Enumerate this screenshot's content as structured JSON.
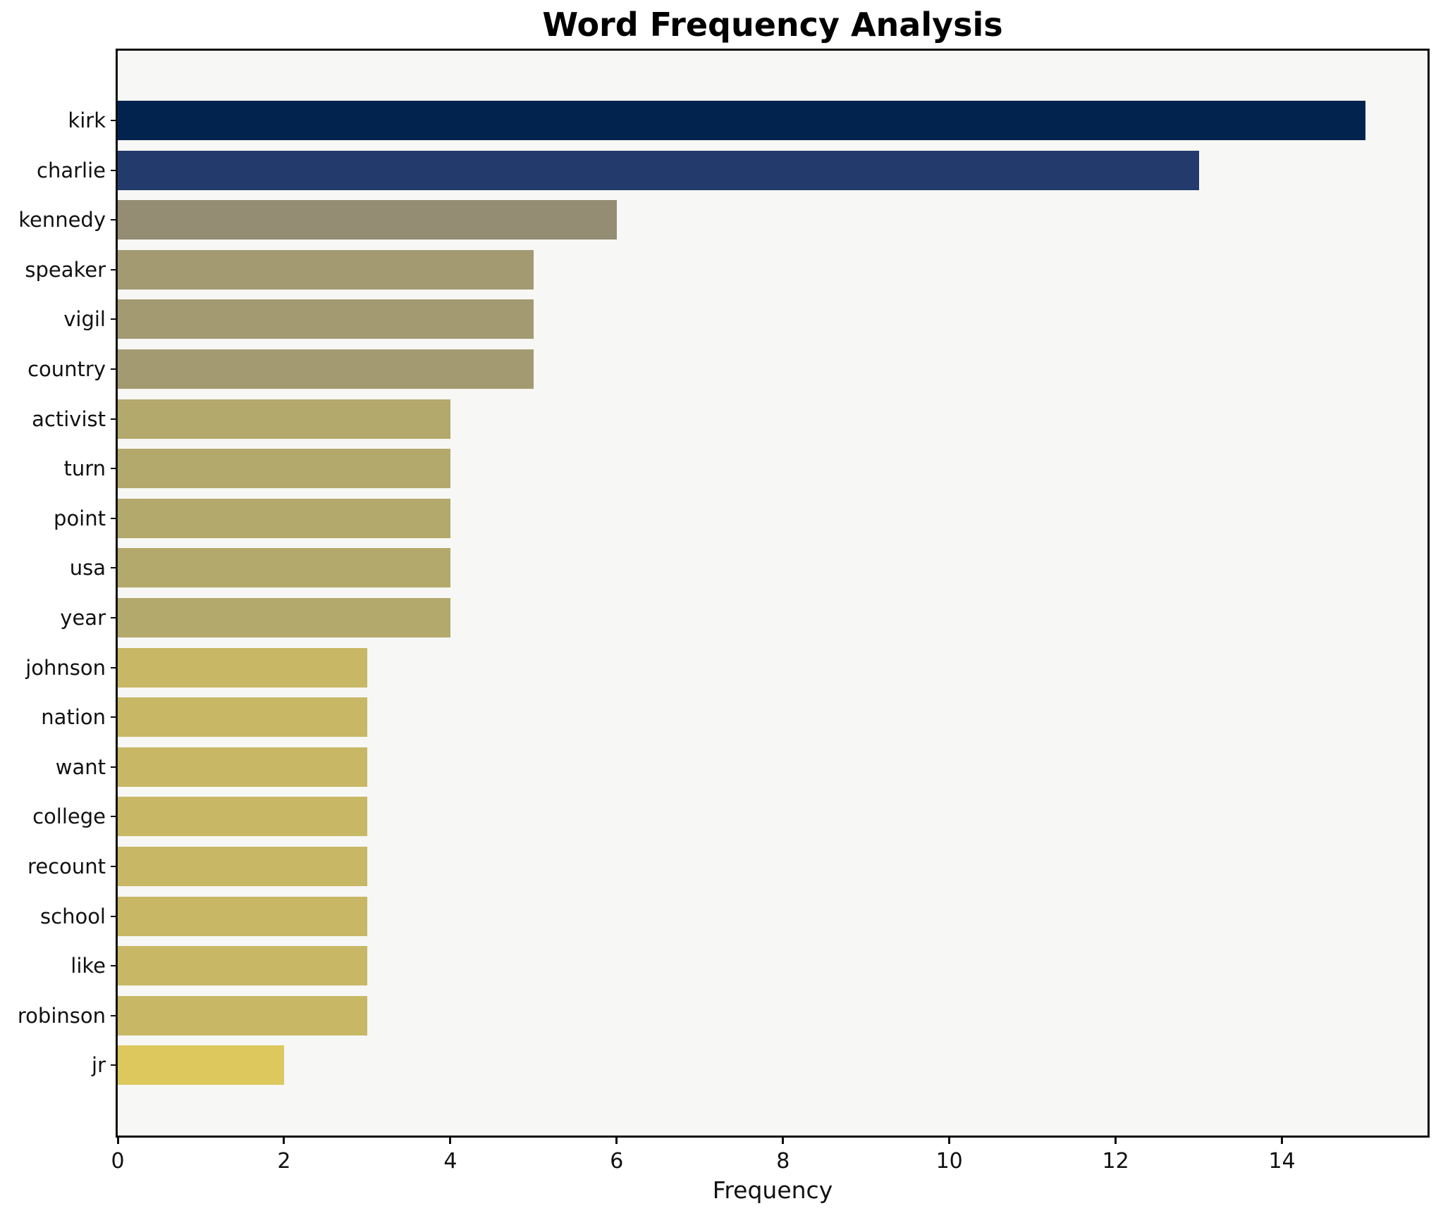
{
  "chart_data": {
    "type": "bar",
    "orientation": "horizontal",
    "title": "Word Frequency Analysis",
    "xlabel": "Frequency",
    "ylabel": "",
    "grid": false,
    "legend_position": "none",
    "xlim": [
      0,
      15.75
    ],
    "xticks": [
      0,
      2,
      4,
      6,
      8,
      10,
      12,
      14
    ],
    "categories": [
      "kirk",
      "charlie",
      "kennedy",
      "speaker",
      "vigil",
      "country",
      "activist",
      "turn",
      "point",
      "usa",
      "year",
      "johnson",
      "nation",
      "want",
      "college",
      "recount",
      "school",
      "like",
      "robinson",
      "jr"
    ],
    "values": [
      15,
      13,
      6,
      5,
      5,
      5,
      4,
      4,
      4,
      4,
      4,
      3,
      3,
      3,
      3,
      3,
      3,
      3,
      3,
      2
    ],
    "bar_colors": [
      "#02234e",
      "#223b6c",
      "#948d74",
      "#a39a72",
      "#a39a72",
      "#a39a72",
      "#b4a96c",
      "#b4a96c",
      "#b4a96c",
      "#b4a96c",
      "#b4a96c",
      "#c8b865",
      "#c8b865",
      "#c8b865",
      "#c8b865",
      "#c8b865",
      "#c8b865",
      "#c8b865",
      "#c8b865",
      "#dcc85c"
    ],
    "colors": {
      "figure_background": "#ffffff",
      "plot_background": "#f7f7f5",
      "spine": "#0d0d0d",
      "text": "#111111",
      "title_text": "#000000"
    }
  }
}
